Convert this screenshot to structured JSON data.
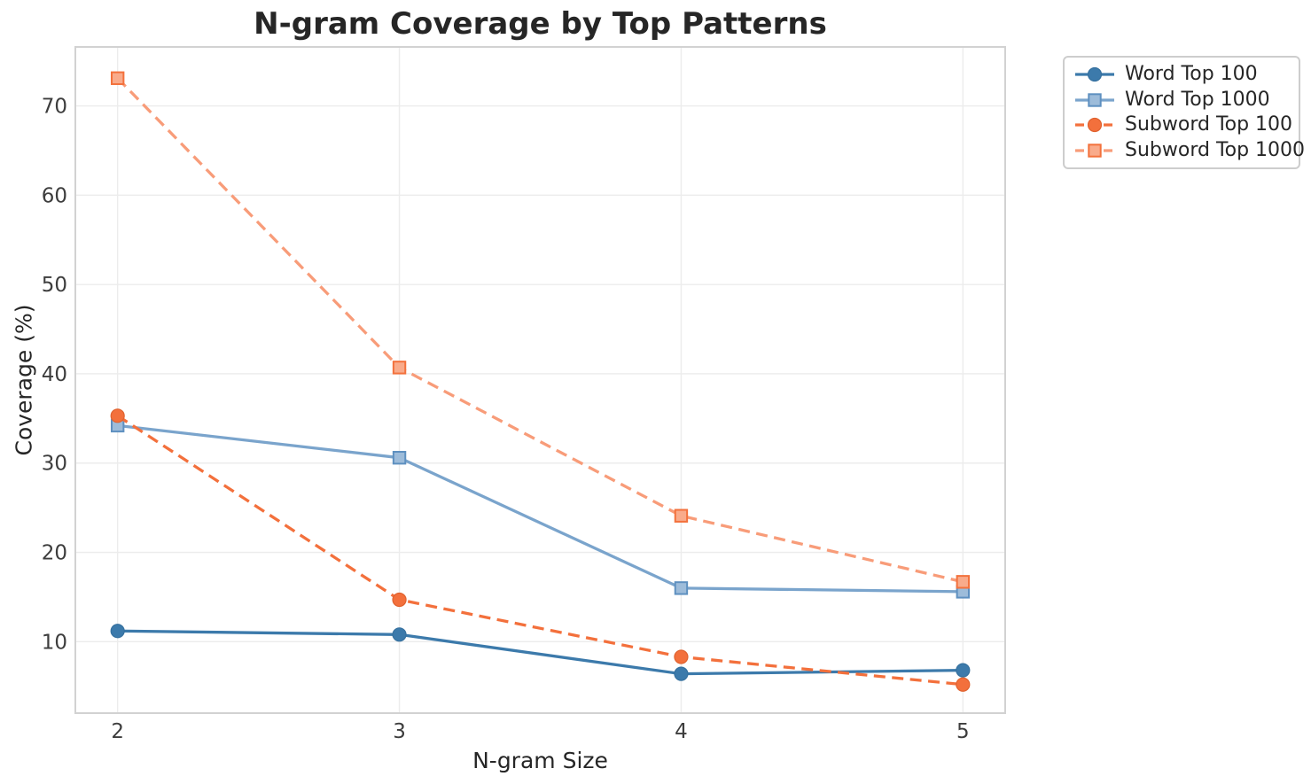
{
  "chart_data": {
    "type": "line",
    "title": "N-gram Coverage by Top Patterns",
    "xlabel": "N-gram Size",
    "ylabel": "Coverage (%)",
    "x": [
      2,
      3,
      4,
      5
    ],
    "xticks": [
      "2",
      "3",
      "4",
      "5"
    ],
    "yticks": [
      10,
      20,
      30,
      40,
      50,
      60,
      70
    ],
    "xlim": [
      1.85,
      5.15
    ],
    "ylim": [
      2.0,
      76.6
    ],
    "grid": true,
    "legend_position": "upper-right",
    "series": [
      {
        "name": "Word Top 100",
        "values": [
          11.2,
          10.8,
          6.4,
          6.8
        ],
        "color": "#3c7aab",
        "linestyle": "solid",
        "marker": "circle",
        "marker_edge": "#36719f",
        "marker_fill": "#3c7aab"
      },
      {
        "name": "Word Top 1000",
        "values": [
          34.2,
          30.6,
          16.0,
          15.6
        ],
        "color": "#7aa4cc",
        "linestyle": "solid",
        "marker": "square",
        "marker_edge": "#5e90c0",
        "marker_fill": "#9dbcda"
      },
      {
        "name": "Subword Top 100",
        "values": [
          35.3,
          14.7,
          8.3,
          5.2
        ],
        "color": "#f3703c",
        "linestyle": "dashed",
        "marker": "circle",
        "marker_edge": "#e0622f",
        "marker_fill": "#f3703c"
      },
      {
        "name": "Subword Top 1000",
        "values": [
          73.1,
          40.7,
          24.1,
          16.7
        ],
        "color": "#f89c79",
        "linestyle": "dashed",
        "marker": "square",
        "marker_edge": "#f3713c",
        "marker_fill": "#f9ab8b"
      }
    ],
    "colors": {
      "background": "#ffffff",
      "grid": "#ececec",
      "spine": "#d2d2d2",
      "title": "#262626",
      "axis_label": "#262626",
      "tick_label": "#3d3d3d",
      "legend_border": "#cdcdcd"
    }
  }
}
